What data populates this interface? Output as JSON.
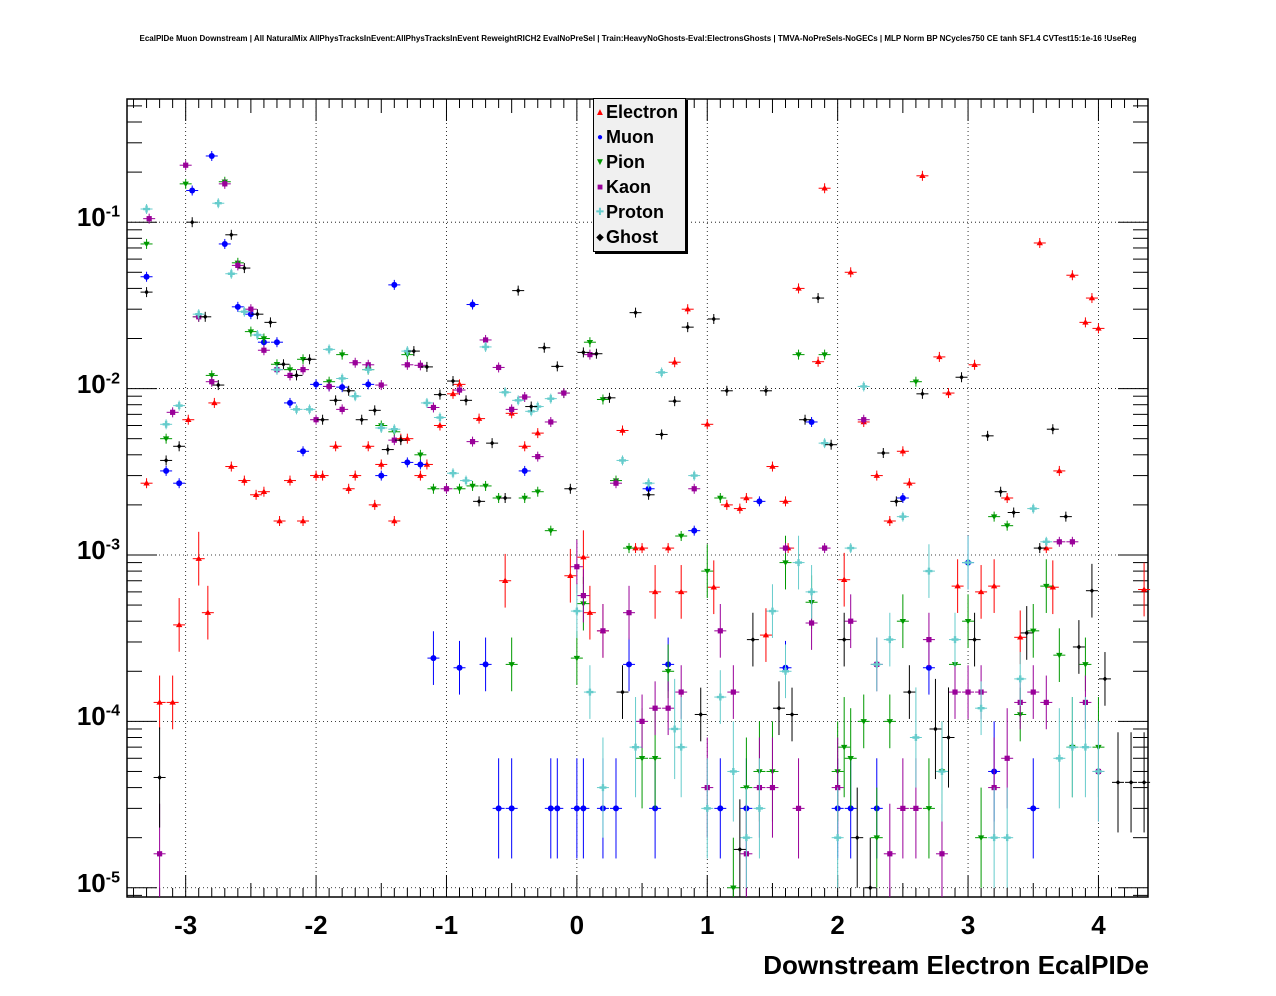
{
  "title": "EcalPIDe Muon Downstream | All NaturalMix AllPhysTracksInEvent:AllPhysTracksInEvent ReweightRICH2 EvalNoPreSel | Train:HeavyNoGhosts-Eval:ElectronsGhosts | TMVA-NoPreSels-NoGECs | MLP Norm BP NCycles750 CE tanh SF1.4 CVTest15:1e-16 !UseReg",
  "chart_data": {
    "type": "scatter",
    "xlabel": "Downstream Electron EcalPIDe",
    "ylabel": "",
    "xlim": [
      -3.45,
      4.38
    ],
    "ylim": [
      8.8e-06,
      0.55
    ],
    "log_y": true,
    "grid": true,
    "legend_position": "top-center",
    "x_ticks": [
      "-3",
      "-2",
      "-1",
      "0",
      "1",
      "2",
      "3",
      "4"
    ],
    "x_tick_values": [
      -3,
      -2,
      -1,
      0,
      1,
      2,
      3,
      4
    ],
    "y_ticks": [
      {
        "base": "10",
        "exp": "-1",
        "value": 0.1
      },
      {
        "base": "10",
        "exp": "-2",
        "value": 0.01
      },
      {
        "base": "10",
        "exp": "-3",
        "value": 0.001
      },
      {
        "base": "10",
        "exp": "-4",
        "value": 0.0001
      },
      {
        "base": "10",
        "exp": "-5",
        "value": 1e-05
      }
    ],
    "series": [
      {
        "name": "Electron",
        "color": "#ff0000",
        "marker": "triangle-up",
        "x": [
          -3.3,
          -3.2,
          -3.1,
          -3.05,
          -2.98,
          -2.9,
          -2.83,
          -2.78,
          -2.65,
          -2.55,
          -2.46,
          -2.4,
          -2.28,
          -2.2,
          -2.1,
          -2.0,
          -1.95,
          -1.85,
          -1.75,
          -1.7,
          -1.6,
          -1.55,
          -1.5,
          -1.4,
          -1.35,
          -1.3,
          -1.2,
          -1.15,
          -1.05,
          -0.95,
          -0.9,
          -0.75,
          -0.55,
          -0.5,
          -0.4,
          -0.3,
          -0.05,
          0.05,
          0.1,
          0.2,
          0.35,
          0.45,
          0.5,
          0.6,
          0.7,
          0.75,
          0.8,
          0.85,
          1.0,
          1.05,
          1.15,
          1.25,
          1.3,
          1.45,
          1.5,
          1.6,
          1.62,
          1.7,
          1.85,
          1.9,
          2.05,
          2.1,
          2.2,
          2.3,
          2.4,
          2.5,
          2.55,
          2.65,
          2.78,
          2.85,
          2.92,
          3.05,
          3.1,
          3.2,
          3.3,
          3.4,
          3.55,
          3.6,
          3.65,
          3.7,
          3.8,
          3.9,
          3.95,
          4.0,
          4.35
        ],
        "y": [
          0.0027,
          0.00013,
          0.00013,
          0.00038,
          0.0065,
          0.00095,
          0.00045,
          0.0082,
          0.0034,
          0.0028,
          0.0023,
          0.0024,
          0.0016,
          0.0028,
          0.0016,
          0.003,
          0.003,
          0.0045,
          0.0025,
          0.003,
          0.0045,
          0.002,
          0.0035,
          0.0016,
          0.005,
          0.005,
          0.003,
          0.0035,
          0.006,
          0.0093,
          0.0106,
          0.0066,
          0.0007,
          0.0071,
          0.0045,
          0.0054,
          0.00075,
          0.00097,
          0.00045,
          0.00035,
          0.0056,
          0.0011,
          0.0011,
          0.0006,
          0.0011,
          0.0144,
          0.0006,
          0.03,
          0.0061,
          0.00064,
          0.002,
          0.0019,
          0.0022,
          0.00033,
          0.0034,
          0.0021,
          0.0011,
          0.04,
          0.0145,
          0.16,
          0.00071,
          0.05,
          0.0063,
          0.003,
          0.0016,
          0.0042,
          0.0027,
          0.19,
          0.0155,
          0.0094,
          0.00065,
          0.0139,
          0.0006,
          0.00065,
          0.0022,
          0.00032,
          0.075,
          0.0011,
          0.00064,
          0.0032,
          0.048,
          0.025,
          0.035,
          0.023,
          0.00062
        ]
      },
      {
        "name": "Muon",
        "color": "#0000ff",
        "marker": "circle",
        "x": [
          -3.3,
          -3.15,
          -3.05,
          -2.95,
          -2.8,
          -2.7,
          -2.6,
          -2.5,
          -2.4,
          -2.3,
          -2.2,
          -2.1,
          -2.0,
          -1.9,
          -1.8,
          -1.6,
          -1.5,
          -1.4,
          -1.3,
          -1.2,
          -1.1,
          -0.9,
          -0.8,
          -0.7,
          -0.6,
          -0.5,
          -0.4,
          -0.2,
          -0.15,
          0.0,
          0.05,
          0.2,
          0.3,
          0.4,
          0.55,
          0.6,
          0.7,
          0.9,
          1.1,
          1.3,
          1.4,
          1.6,
          1.8,
          2.0,
          2.1,
          2.3,
          2.5,
          2.7,
          3.0,
          3.2,
          3.5
        ],
        "y": [
          0.047,
          0.0032,
          0.0027,
          0.155,
          0.25,
          0.074,
          0.031,
          0.028,
          0.019,
          0.019,
          0.0082,
          0.0042,
          0.0106,
          0.0103,
          0.0102,
          0.0106,
          0.003,
          0.042,
          0.0036,
          0.0035,
          0.00024,
          0.00021,
          0.032,
          0.00022,
          3e-05,
          3e-05,
          0.0032,
          3e-05,
          3e-05,
          3e-05,
          3e-05,
          3e-05,
          3e-05,
          0.00022,
          0.0025,
          3e-05,
          0.00022,
          0.0014,
          3e-05,
          3e-05,
          0.0021,
          0.00021,
          0.0063,
          3e-05,
          3e-05,
          3e-05,
          0.0022,
          0.00021,
          0.0009,
          5e-05,
          3e-05
        ]
      },
      {
        "name": "Pion",
        "color": "#009900",
        "marker": "triangle-down",
        "x": [
          -3.3,
          -3.15,
          -3.0,
          -2.9,
          -2.8,
          -2.7,
          -2.6,
          -2.5,
          -2.4,
          -2.3,
          -2.2,
          -2.1,
          -1.9,
          -1.8,
          -1.6,
          -1.5,
          -1.4,
          -1.3,
          -1.2,
          -1.1,
          -0.9,
          -0.8,
          -0.7,
          -0.6,
          -0.5,
          -0.4,
          -0.3,
          -0.2,
          -0.1,
          0.0,
          0.05,
          0.1,
          0.2,
          0.3,
          0.4,
          0.5,
          0.6,
          0.7,
          0.8,
          1.0,
          1.1,
          1.2,
          1.3,
          1.4,
          1.5,
          1.6,
          1.7,
          1.8,
          1.9,
          2.0,
          2.05,
          2.1,
          2.2,
          2.3,
          2.4,
          2.5,
          2.6,
          2.7,
          2.8,
          2.9,
          3.0,
          3.1,
          3.2,
          3.3,
          3.4,
          3.5,
          3.6,
          3.7,
          3.8,
          3.9,
          4.0
        ],
        "y": [
          0.074,
          0.005,
          0.17,
          0.027,
          0.012,
          0.175,
          0.057,
          0.022,
          0.02,
          0.014,
          0.013,
          0.015,
          0.011,
          0.016,
          0.013,
          0.006,
          0.0055,
          0.016,
          0.004,
          0.0025,
          0.0025,
          0.0026,
          0.0026,
          0.0022,
          0.00022,
          0.0022,
          0.0024,
          0.0014,
          0.0094,
          0.00024,
          0.00051,
          0.019,
          0.0086,
          0.0028,
          0.0011,
          6e-05,
          6e-05,
          0.0002,
          0.0013,
          0.0008,
          0.0022,
          1e-05,
          4e-05,
          5e-05,
          5e-05,
          0.0009,
          0.016,
          0.00052,
          0.016,
          5e-05,
          7e-05,
          6e-05,
          0.0001,
          2e-05,
          0.0001,
          0.0004,
          0.011,
          3e-05,
          5e-05,
          0.00022,
          0.0004,
          2e-05,
          0.0017,
          0.0015,
          0.00011,
          0.00035,
          0.00065,
          0.00025,
          7e-05,
          0.00022,
          7e-05
        ]
      },
      {
        "name": "Kaon",
        "color": "#990099",
        "marker": "square",
        "x": [
          -3.28,
          -3.2,
          -3.1,
          -3.0,
          -2.9,
          -2.8,
          -2.7,
          -2.6,
          -2.5,
          -2.4,
          -2.3,
          -2.2,
          -2.1,
          -2.0,
          -1.9,
          -1.8,
          -1.7,
          -1.6,
          -1.5,
          -1.4,
          -1.3,
          -1.2,
          -1.1,
          -1.0,
          -0.9,
          -0.8,
          -0.7,
          -0.6,
          -0.5,
          -0.4,
          -0.3,
          -0.2,
          -0.1,
          0.0,
          0.05,
          0.1,
          0.2,
          0.3,
          0.4,
          0.5,
          0.6,
          0.7,
          0.8,
          0.9,
          1.0,
          1.1,
          1.2,
          1.3,
          1.4,
          1.5,
          1.6,
          1.7,
          1.8,
          1.9,
          2.0,
          2.1,
          2.2,
          2.3,
          2.4,
          2.5,
          2.6,
          2.7,
          2.8,
          2.9,
          3.0,
          3.1,
          3.2,
          3.3,
          3.4,
          3.5,
          3.6,
          3.7,
          3.8,
          3.9,
          4.0
        ],
        "y": [
          0.105,
          1.6e-05,
          0.0072,
          0.22,
          0.027,
          0.011,
          0.17,
          0.055,
          0.03,
          0.017,
          0.013,
          0.012,
          0.013,
          0.0065,
          0.0103,
          0.0075,
          0.0143,
          0.0139,
          0.0105,
          0.0049,
          0.0139,
          0.0138,
          0.0077,
          0.0025,
          0.0098,
          0.0048,
          0.0196,
          0.0134,
          0.0075,
          0.0089,
          0.0039,
          0.0063,
          0.0094,
          0.00085,
          0.00057,
          0.016,
          0.00035,
          0.0027,
          0.00045,
          0.0001,
          0.00012,
          0.00012,
          0.00015,
          0.0025,
          4e-05,
          0.00035,
          0.00015,
          1.6e-05,
          4e-05,
          4e-05,
          0.0011,
          3e-05,
          0.00039,
          0.0011,
          4e-05,
          0.0004,
          0.0065,
          0.00022,
          1.6e-05,
          3e-05,
          3e-05,
          0.00031,
          1.6e-05,
          0.00015,
          0.00015,
          0.00015,
          4e-05,
          6e-05,
          0.00013,
          0.00015,
          0.00013,
          0.0012,
          0.0012,
          0.00013,
          5e-05
        ]
      },
      {
        "name": "Proton",
        "color": "#66cccc",
        "marker": "cross",
        "x": [
          -3.3,
          -3.15,
          -3.05,
          -2.9,
          -2.75,
          -2.65,
          -2.55,
          -2.45,
          -2.3,
          -2.15,
          -2.05,
          -1.9,
          -1.8,
          -1.7,
          -1.6,
          -1.5,
          -1.4,
          -1.3,
          -1.15,
          -1.05,
          -0.95,
          -0.85,
          -0.7,
          -0.55,
          -0.45,
          -0.35,
          -0.3,
          -0.2,
          0.0,
          0.1,
          0.2,
          0.35,
          0.45,
          0.55,
          0.65,
          0.75,
          0.8,
          0.9,
          1.0,
          1.1,
          1.2,
          1.3,
          1.4,
          1.5,
          1.6,
          1.7,
          1.8,
          1.9,
          2.0,
          2.1,
          2.2,
          2.3,
          2.4,
          2.5,
          2.6,
          2.7,
          2.8,
          2.9,
          3.0,
          3.1,
          3.2,
          3.3,
          3.4,
          3.5,
          3.6,
          3.7,
          3.8,
          3.9,
          4.0
        ],
        "y": [
          0.12,
          0.0061,
          0.0079,
          0.028,
          0.13,
          0.049,
          0.029,
          0.021,
          0.013,
          0.0075,
          0.0075,
          0.0172,
          0.0115,
          0.009,
          0.013,
          0.0058,
          0.0057,
          0.0168,
          0.0082,
          0.0067,
          0.0031,
          0.0028,
          0.0178,
          0.0095,
          0.0085,
          0.0073,
          0.0078,
          0.0087,
          0.00046,
          0.00015,
          4e-05,
          0.0037,
          7e-05,
          0.0027,
          0.0125,
          9e-05,
          7e-05,
          0.003,
          3e-05,
          0.00014,
          5e-05,
          2e-05,
          3e-05,
          0.00046,
          0.0002,
          0.0009,
          0.0006,
          0.0047,
          2e-05,
          0.0011,
          0.0103,
          0.00022,
          0.00031,
          0.0017,
          8e-05,
          0.0008,
          5e-05,
          0.00031,
          0.0009,
          0.00012,
          2e-05,
          2e-05,
          0.00018,
          0.0019,
          0.0012,
          6e-05,
          7e-05,
          7e-05,
          5e-05
        ]
      },
      {
        "name": "Ghost",
        "color": "#000000",
        "marker": "diamond",
        "x": [
          -3.3,
          -3.2,
          -3.15,
          -3.05,
          -2.95,
          -2.85,
          -2.75,
          -2.65,
          -2.55,
          -2.45,
          -2.35,
          -2.25,
          -2.15,
          -2.05,
          -1.95,
          -1.85,
          -1.75,
          -1.65,
          -1.55,
          -1.45,
          -1.35,
          -1.25,
          -1.15,
          -1.05,
          -0.95,
          -0.85,
          -0.75,
          -0.65,
          -0.55,
          -0.45,
          -0.35,
          -0.25,
          -0.15,
          -0.05,
          0.05,
          0.15,
          0.25,
          0.35,
          0.45,
          0.55,
          0.65,
          0.75,
          0.85,
          0.95,
          1.05,
          1.15,
          1.25,
          1.35,
          1.45,
          1.55,
          1.65,
          1.75,
          1.85,
          1.95,
          2.05,
          2.15,
          2.25,
          2.35,
          2.45,
          2.55,
          2.65,
          2.75,
          2.85,
          2.95,
          3.05,
          3.15,
          3.25,
          3.35,
          3.45,
          3.55,
          3.65,
          3.75,
          3.85,
          3.95,
          4.05,
          4.15,
          4.25,
          4.35
        ],
        "y": [
          0.038,
          4.6e-05,
          0.0037,
          0.0045,
          0.1,
          0.027,
          0.0105,
          0.084,
          0.053,
          0.028,
          0.025,
          0.014,
          0.012,
          0.015,
          0.0065,
          0.0085,
          0.0097,
          0.0065,
          0.0074,
          0.0043,
          0.0049,
          0.0168,
          0.0135,
          0.0092,
          0.0111,
          0.0085,
          0.0021,
          0.0047,
          0.0022,
          0.0388,
          0.0078,
          0.0176,
          0.0136,
          0.0025,
          0.0165,
          0.0162,
          0.0088,
          0.00015,
          0.0286,
          0.0023,
          0.0053,
          0.0084,
          0.0234,
          0.00011,
          0.0262,
          0.0097,
          1.7e-05,
          0.00031,
          0.0097,
          0.00012,
          0.00011,
          0.0065,
          0.035,
          0.0046,
          0.00031,
          2e-05,
          1e-05,
          0.0041,
          0.0021,
          0.00015,
          0.0093,
          9e-05,
          8e-05,
          0.0117,
          0.00031,
          0.0052,
          0.0024,
          0.0018,
          0.00034,
          0.0011,
          0.0057,
          0.0017,
          0.00028,
          0.00061,
          0.00018,
          4.3e-05,
          4.3e-05,
          4.3e-05
        ]
      }
    ]
  }
}
